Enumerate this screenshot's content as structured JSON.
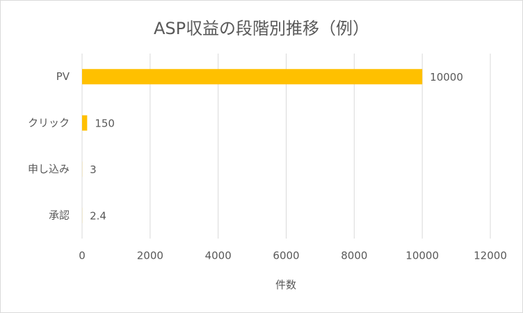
{
  "chart_data": {
    "type": "bar",
    "orientation": "horizontal",
    "title": "ASP収益の段階別推移（例）",
    "categories": [
      "PV",
      "クリック",
      "申し込み",
      "承認"
    ],
    "values": [
      10000,
      150,
      3,
      2.4
    ],
    "color": "#ffc000",
    "xlim": [
      0,
      12000
    ],
    "xticks": [
      0,
      2000,
      4000,
      6000,
      8000,
      10000,
      12000
    ],
    "xlabel": "件数",
    "grid": true
  }
}
